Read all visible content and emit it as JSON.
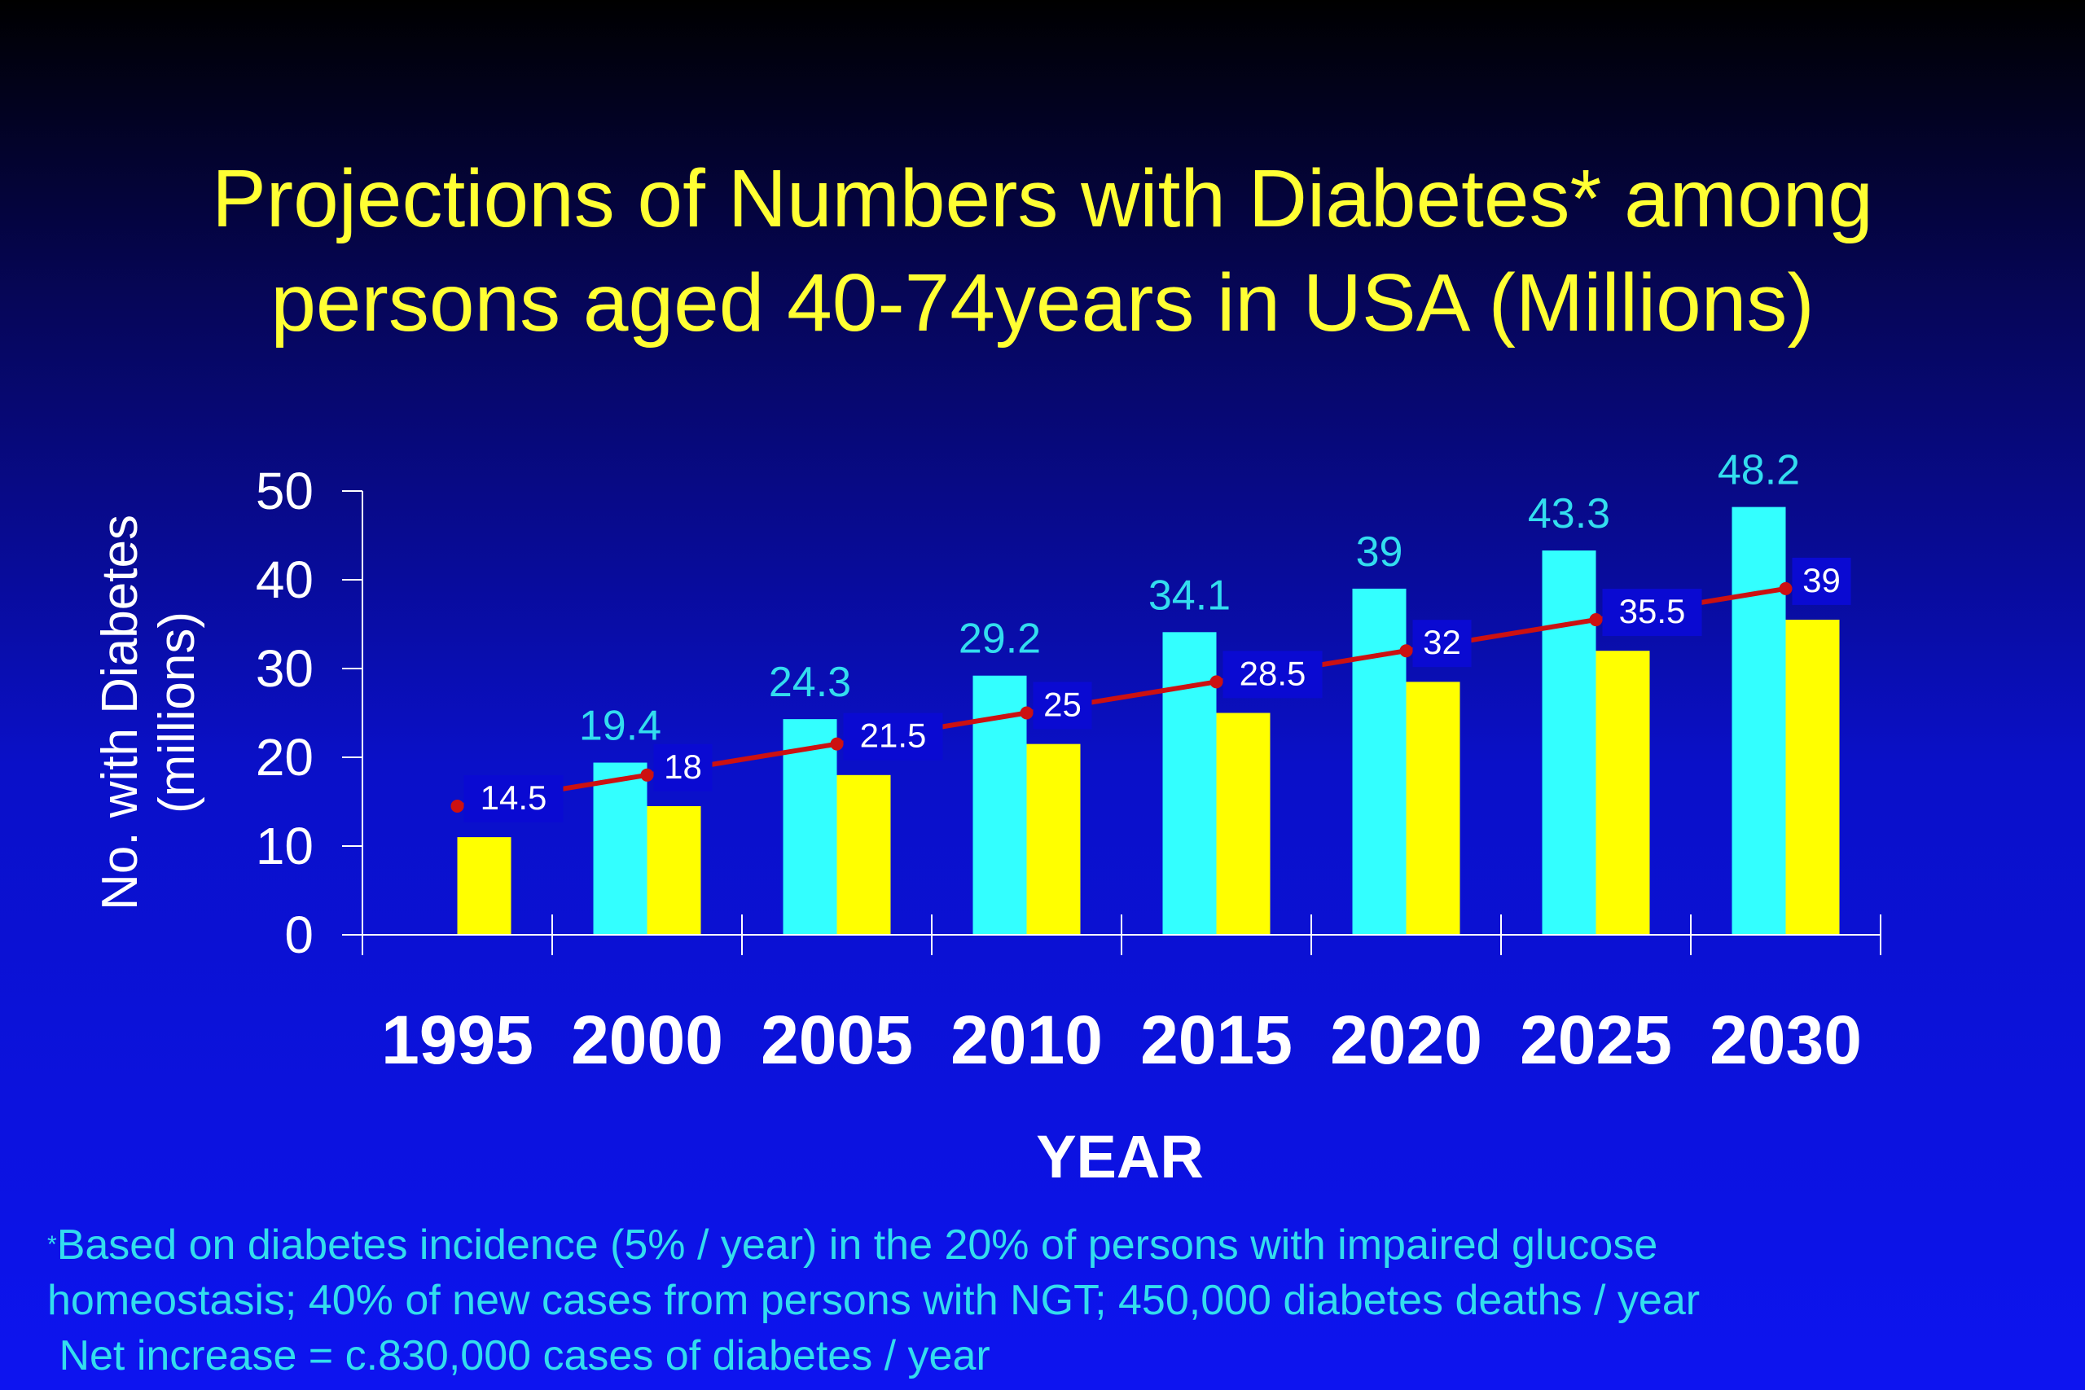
{
  "title": {
    "line1": "Projections of Numbers with Diabetes* among",
    "line2": "persons aged 40-74years in USA (Millions)"
  },
  "chart_data": {
    "type": "bar",
    "categories": [
      "1995",
      "2000",
      "2005",
      "2010",
      "2015",
      "2020",
      "2025",
      "2030"
    ],
    "series": [
      {
        "values": [
          null,
          19.4,
          24.3,
          29.2,
          34.1,
          39,
          43.3,
          48.2
        ],
        "color": "#33ffff",
        "label_color": "#33ddee"
      },
      {
        "values": [
          11,
          14.5,
          18,
          21.5,
          25,
          28.5,
          32,
          35.5
        ],
        "color": "#ffff00"
      },
      {
        "type": "line",
        "values": [
          14.5,
          18,
          21.5,
          25,
          28.5,
          32,
          35.5,
          39
        ],
        "color": "#cc1111",
        "label_bg": "#0a0ad2",
        "label_color": "#ffffff"
      }
    ],
    "ylabel_line1": "No. with Diabetes",
    "ylabel_line2": "(millions)",
    "xlabel": "YEAR",
    "ylim": [
      0,
      50
    ],
    "yticks": [
      "0",
      "10",
      "20",
      "30",
      "40",
      "50"
    ],
    "grid": false,
    "legend": "none"
  },
  "footnote": {
    "marker": "*",
    "line1": "Based on diabetes incidence (5% / year) in the 20% of persons with impaired glucose",
    "line2": "homeostasis; 40% of new cases from persons with NGT; 450,000 diabetes deaths / year",
    "line3": " Net increase = c.830,000 cases of diabetes / year"
  }
}
